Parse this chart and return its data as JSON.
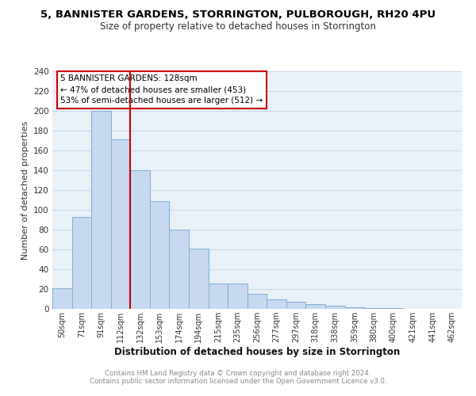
{
  "title": "5, BANNISTER GARDENS, STORRINGTON, PULBOROUGH, RH20 4PU",
  "subtitle": "Size of property relative to detached houses in Storrington",
  "xlabel": "Distribution of detached houses by size in Storrington",
  "ylabel": "Number of detached properties",
  "bar_labels": [
    "50sqm",
    "71sqm",
    "91sqm",
    "112sqm",
    "132sqm",
    "153sqm",
    "174sqm",
    "194sqm",
    "215sqm",
    "235sqm",
    "256sqm",
    "277sqm",
    "297sqm",
    "318sqm",
    "338sqm",
    "359sqm",
    "380sqm",
    "400sqm",
    "421sqm",
    "441sqm",
    "462sqm"
  ],
  "bar_values": [
    21,
    93,
    200,
    171,
    140,
    109,
    80,
    61,
    26,
    26,
    15,
    10,
    7,
    5,
    3,
    2,
    1,
    1,
    0,
    0,
    0
  ],
  "bar_color": "#c6d9f1",
  "bar_edge_color": "#7bafd4",
  "vline_x_index": 4,
  "vline_color": "#cc0000",
  "ylim": [
    0,
    240
  ],
  "yticks": [
    0,
    20,
    40,
    60,
    80,
    100,
    120,
    140,
    160,
    180,
    200,
    220,
    240
  ],
  "annotation_title": "5 BANNISTER GARDENS: 128sqm",
  "annotation_line1": "← 47% of detached houses are smaller (453)",
  "annotation_line2": "53% of semi-detached houses are larger (512) →",
  "annotation_box_color": "#ffffff",
  "annotation_box_edgecolor": "#cc0000",
  "footer1": "Contains HM Land Registry data © Crown copyright and database right 2024.",
  "footer2": "Contains public sector information licensed under the Open Government Licence v3.0.",
  "background_color": "#ffffff",
  "plot_bg_color": "#e8f0f8",
  "grid_color": "#c8d8e8"
}
